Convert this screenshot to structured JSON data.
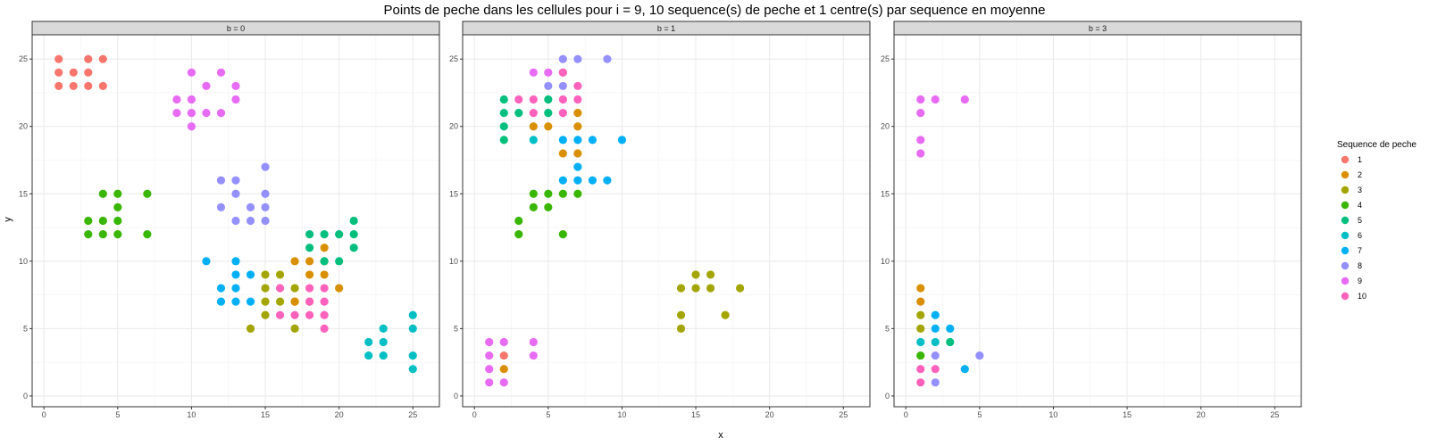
{
  "chart_data": {
    "type": "scatter",
    "title": "Points de peche dans les cellules pour i = 9, 10 sequence(s) de peche et 1 centre(s) par sequence en moyenne",
    "xlabel": "x",
    "ylabel": "y",
    "xlim": [
      -0.8,
      26.8
    ],
    "ylim": [
      -0.8,
      26.8
    ],
    "x_ticks": [
      0,
      5,
      10,
      15,
      20,
      25
    ],
    "y_ticks": [
      0,
      5,
      10,
      15,
      20,
      25
    ],
    "grid": true,
    "facets": [
      "b = 0",
      "b = 1",
      "b = 3"
    ],
    "legend": {
      "title": "Sequence de peche",
      "position": "right",
      "entries": [
        "1",
        "2",
        "3",
        "4",
        "5",
        "6",
        "7",
        "8",
        "9",
        "10"
      ],
      "colors": [
        "#F8766D",
        "#D89000",
        "#A3A500",
        "#39B600",
        "#00BF7D",
        "#00BFC4",
        "#00B0F6",
        "#9590FF",
        "#E76BF3",
        "#FF62BC"
      ]
    },
    "panels": [
      {
        "facet": "b = 0",
        "series": [
          {
            "name": "1",
            "points": [
              [
                1,
                25
              ],
              [
                3,
                25
              ],
              [
                4,
                25
              ],
              [
                1,
                24
              ],
              [
                2,
                24
              ],
              [
                3,
                24
              ],
              [
                1,
                23
              ],
              [
                2,
                23
              ],
              [
                3,
                23
              ],
              [
                4,
                23
              ]
            ]
          },
          {
            "name": "2",
            "points": [
              [
                17,
                10
              ],
              [
                18,
                10
              ],
              [
                19,
                10
              ],
              [
                19,
                11
              ],
              [
                18,
                9
              ],
              [
                19,
                9
              ],
              [
                17,
                7
              ],
              [
                18,
                7
              ],
              [
                20,
                8
              ],
              [
                17,
                7
              ]
            ]
          },
          {
            "name": "3",
            "points": [
              [
                15,
                9
              ],
              [
                16,
                9
              ],
              [
                15,
                8
              ],
              [
                17,
                8
              ],
              [
                15,
                7
              ],
              [
                16,
                7
              ],
              [
                15,
                6
              ],
              [
                14,
                5
              ],
              [
                17,
                5
              ]
            ]
          },
          {
            "name": "4",
            "points": [
              [
                4,
                15
              ],
              [
                5,
                15
              ],
              [
                7,
                15
              ],
              [
                5,
                14
              ],
              [
                3,
                13
              ],
              [
                4,
                13
              ],
              [
                5,
                13
              ],
              [
                3,
                12
              ],
              [
                4,
                12
              ],
              [
                5,
                12
              ],
              [
                7,
                12
              ]
            ]
          },
          {
            "name": "5",
            "points": [
              [
                18,
                12
              ],
              [
                19,
                12
              ],
              [
                20,
                12
              ],
              [
                21,
                12
              ],
              [
                21,
                13
              ],
              [
                18,
                11
              ],
              [
                21,
                11
              ],
              [
                19,
                10
              ],
              [
                20,
                10
              ]
            ]
          },
          {
            "name": "6",
            "points": [
              [
                25,
                6
              ],
              [
                23,
                5
              ],
              [
                25,
                5
              ],
              [
                22,
                4
              ],
              [
                23,
                4
              ],
              [
                22,
                3
              ],
              [
                23,
                3
              ],
              [
                25,
                3
              ],
              [
                25,
                2
              ]
            ]
          },
          {
            "name": "7",
            "points": [
              [
                11,
                10
              ],
              [
                13,
                10
              ],
              [
                13,
                9
              ],
              [
                14,
                9
              ],
              [
                12,
                8
              ],
              [
                13,
                8
              ],
              [
                12,
                7
              ],
              [
                13,
                7
              ],
              [
                14,
                7
              ]
            ]
          },
          {
            "name": "8",
            "points": [
              [
                15,
                17
              ],
              [
                12,
                16
              ],
              [
                13,
                16
              ],
              [
                13,
                15
              ],
              [
                15,
                15
              ],
              [
                12,
                14
              ],
              [
                14,
                14
              ],
              [
                15,
                14
              ],
              [
                13,
                13
              ],
              [
                14,
                13
              ],
              [
                15,
                13
              ]
            ]
          },
          {
            "name": "9",
            "points": [
              [
                10,
                24
              ],
              [
                12,
                24
              ],
              [
                11,
                23
              ],
              [
                13,
                23
              ],
              [
                9,
                22
              ],
              [
                10,
                22
              ],
              [
                13,
                22
              ],
              [
                9,
                21
              ],
              [
                10,
                21
              ],
              [
                11,
                21
              ],
              [
                12,
                21
              ],
              [
                10,
                20
              ]
            ]
          },
          {
            "name": "10",
            "points": [
              [
                16,
                8
              ],
              [
                18,
                8
              ],
              [
                19,
                8
              ],
              [
                18,
                7
              ],
              [
                19,
                7
              ],
              [
                16,
                6
              ],
              [
                17,
                6
              ],
              [
                18,
                6
              ],
              [
                19,
                6
              ],
              [
                19,
                5
              ]
            ]
          }
        ]
      },
      {
        "facet": "b = 1",
        "series": [
          {
            "name": "1",
            "points": [
              [
                2,
                3
              ]
            ]
          },
          {
            "name": "2",
            "points": [
              [
                4,
                20
              ],
              [
                5,
                20
              ],
              [
                7,
                20
              ],
              [
                7,
                21
              ],
              [
                6,
                18
              ],
              [
                7,
                18
              ],
              [
                2,
                2
              ]
            ]
          },
          {
            "name": "3",
            "points": [
              [
                15,
                9
              ],
              [
                16,
                9
              ],
              [
                14,
                8
              ],
              [
                15,
                8
              ],
              [
                16,
                8
              ],
              [
                18,
                8
              ],
              [
                14,
                6
              ],
              [
                17,
                6
              ],
              [
                14,
                5
              ]
            ]
          },
          {
            "name": "4",
            "points": [
              [
                4,
                15
              ],
              [
                5,
                15
              ],
              [
                6,
                15
              ],
              [
                7,
                15
              ],
              [
                4,
                14
              ],
              [
                5,
                14
              ],
              [
                3,
                13
              ],
              [
                3,
                12
              ],
              [
                6,
                12
              ]
            ]
          },
          {
            "name": "5",
            "points": [
              [
                2,
                22
              ],
              [
                5,
                22
              ],
              [
                2,
                21
              ],
              [
                3,
                21
              ],
              [
                5,
                21
              ],
              [
                2,
                20
              ],
              [
                2,
                19
              ]
            ]
          },
          {
            "name": "6",
            "points": [
              [
                4,
                19
              ]
            ]
          },
          {
            "name": "7",
            "points": [
              [
                6,
                19
              ],
              [
                7,
                19
              ],
              [
                8,
                19
              ],
              [
                10,
                19
              ],
              [
                7,
                17
              ],
              [
                6,
                16
              ],
              [
                7,
                16
              ],
              [
                8,
                16
              ],
              [
                9,
                16
              ]
            ]
          },
          {
            "name": "8",
            "points": [
              [
                6,
                25
              ],
              [
                7,
                25
              ],
              [
                9,
                25
              ],
              [
                5,
                23
              ],
              [
                6,
                23
              ]
            ]
          },
          {
            "name": "9",
            "points": [
              [
                4,
                24
              ],
              [
                5,
                24
              ],
              [
                6,
                24
              ],
              [
                1,
                4
              ],
              [
                2,
                4
              ],
              [
                4,
                4
              ],
              [
                1,
                3
              ],
              [
                4,
                3
              ],
              [
                1,
                2
              ],
              [
                1,
                1
              ],
              [
                2,
                1
              ]
            ]
          },
          {
            "name": "10",
            "points": [
              [
                6,
                24
              ],
              [
                7,
                23
              ],
              [
                3,
                22
              ],
              [
                4,
                22
              ],
              [
                6,
                22
              ],
              [
                7,
                22
              ],
              [
                4,
                21
              ],
              [
                6,
                21
              ]
            ]
          }
        ]
      },
      {
        "facet": "b = 3",
        "series": [
          {
            "name": "1",
            "points": []
          },
          {
            "name": "2",
            "points": [
              [
                1,
                8
              ],
              [
                1,
                7
              ]
            ]
          },
          {
            "name": "3",
            "points": [
              [
                1,
                6
              ],
              [
                1,
                5
              ]
            ]
          },
          {
            "name": "4",
            "points": [
              [
                1,
                3
              ]
            ]
          },
          {
            "name": "5",
            "points": [
              [
                3,
                4
              ]
            ]
          },
          {
            "name": "6",
            "points": [
              [
                1,
                4
              ],
              [
                2,
                4
              ]
            ]
          },
          {
            "name": "7",
            "points": [
              [
                2,
                6
              ],
              [
                2,
                5
              ],
              [
                3,
                5
              ],
              [
                4,
                2
              ]
            ]
          },
          {
            "name": "8",
            "points": [
              [
                2,
                3
              ],
              [
                5,
                3
              ],
              [
                2,
                1
              ]
            ]
          },
          {
            "name": "9",
            "points": [
              [
                1,
                22
              ],
              [
                2,
                22
              ],
              [
                4,
                22
              ],
              [
                1,
                21
              ],
              [
                1,
                19
              ],
              [
                1,
                18
              ]
            ]
          },
          {
            "name": "10",
            "points": [
              [
                1,
                2
              ],
              [
                2,
                2
              ],
              [
                1,
                1
              ]
            ]
          }
        ]
      }
    ]
  }
}
